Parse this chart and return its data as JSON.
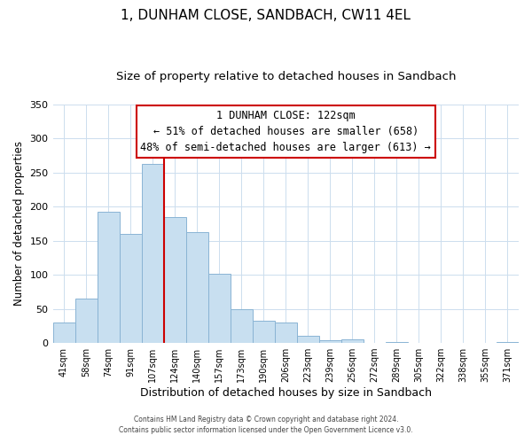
{
  "title": "1, DUNHAM CLOSE, SANDBACH, CW11 4EL",
  "subtitle": "Size of property relative to detached houses in Sandbach",
  "xlabel": "Distribution of detached houses by size in Sandbach",
  "ylabel": "Number of detached properties",
  "bar_labels": [
    "41sqm",
    "58sqm",
    "74sqm",
    "91sqm",
    "107sqm",
    "124sqm",
    "140sqm",
    "157sqm",
    "173sqm",
    "190sqm",
    "206sqm",
    "223sqm",
    "239sqm",
    "256sqm",
    "272sqm",
    "289sqm",
    "305sqm",
    "322sqm",
    "338sqm",
    "355sqm",
    "371sqm"
  ],
  "bar_heights": [
    30,
    65,
    193,
    160,
    262,
    185,
    163,
    102,
    50,
    32,
    30,
    11,
    4,
    5,
    0,
    1,
    0,
    0,
    0,
    0,
    1
  ],
  "bar_color": "#c8dff0",
  "bar_edge_color": "#8ab4d4",
  "vline_index": 5,
  "vline_color": "#cc0000",
  "annotation_title": "1 DUNHAM CLOSE: 122sqm",
  "annotation_line1": "← 51% of detached houses are smaller (658)",
  "annotation_line2": "48% of semi-detached houses are larger (613) →",
  "annotation_box_edge": "#cc0000",
  "ylim": [
    0,
    350
  ],
  "yticks": [
    0,
    50,
    100,
    150,
    200,
    250,
    300,
    350
  ],
  "footer1": "Contains HM Land Registry data © Crown copyright and database right 2024.",
  "footer2": "Contains public sector information licensed under the Open Government Licence v3.0.",
  "background_color": "#ffffff",
  "title_fontsize": 11,
  "subtitle_fontsize": 9.5,
  "xlabel_fontsize": 9,
  "ylabel_fontsize": 8.5,
  "ann_fontsize": 8.5
}
